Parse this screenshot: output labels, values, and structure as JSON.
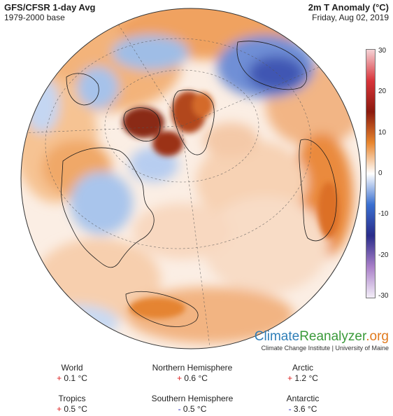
{
  "header": {
    "title": "GFS/CFSR 1-day Avg",
    "base": "1979-2000 base",
    "variable": "2m T Anomaly (°C)",
    "date": "Friday, Aug 02, 2019"
  },
  "colorbar": {
    "ticks": [
      "30",
      "20",
      "10",
      "0",
      "-10",
      "-20",
      "-30"
    ],
    "range": [
      -30,
      30
    ],
    "colors": [
      "#f5d2d6",
      "#d8343a",
      "#8b1a0e",
      "#e8862e",
      "#ffffff",
      "#3a6fd0",
      "#2a2d8a",
      "#a97fc8",
      "#f3eef8"
    ]
  },
  "brand": {
    "climate": "Climate",
    "reanalyzer": "Reanalyzer",
    "org": ".org",
    "sub": "Climate Change Institute | University of Maine"
  },
  "stats": [
    {
      "label": "World",
      "sign": "+",
      "value": "0.1 °C"
    },
    {
      "label": "Northern Hemisphere",
      "sign": "+",
      "value": "0.6 °C"
    },
    {
      "label": "Arctic",
      "sign": "+",
      "value": "1.2 °C"
    },
    {
      "label": "Tropics",
      "sign": "+",
      "value": "0.5 °C"
    },
    {
      "label": "Southern Hemisphere",
      "sign": "-",
      "value": "0.5 °C"
    },
    {
      "label": "Antarctic",
      "sign": "-",
      "value": "3.6 °C"
    }
  ],
  "map_colors": {
    "warm": "#f0a35e",
    "hot": "#8c2410",
    "cool": "#8fb0e0",
    "cold": "#3c4fa8",
    "neutral": "#fbf1ea"
  }
}
